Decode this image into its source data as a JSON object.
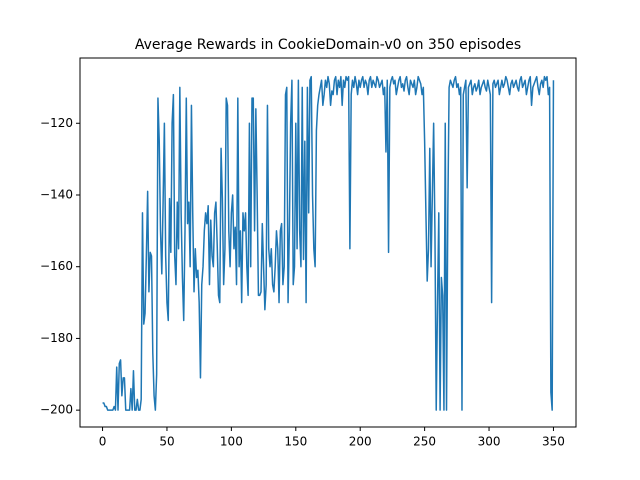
{
  "chart_data": {
    "type": "line",
    "title": "Average Rewards in CookieDomain-v0 on 350 episodes",
    "xlim": [
      -17.5,
      367.5
    ],
    "ylim": [
      -204.7,
      -101.8
    ],
    "xticks": [
      0,
      50,
      100,
      150,
      200,
      250,
      300,
      350
    ],
    "yticks": [
      {
        "value": -200,
        "label": "−200"
      },
      {
        "value": -180,
        "label": "−180"
      },
      {
        "value": -160,
        "label": "−160"
      },
      {
        "value": -140,
        "label": "−140"
      },
      {
        "value": -120,
        "label": "−120"
      }
    ],
    "series": [
      {
        "color": "#1f77b4",
        "x": [
          0,
          1,
          2,
          3,
          4,
          5,
          6,
          7,
          8,
          9,
          10,
          11,
          12,
          13,
          14,
          15,
          16,
          17,
          18,
          19,
          20,
          21,
          22,
          23,
          24,
          25,
          26,
          27,
          28,
          29,
          30,
          31,
          32,
          33,
          34,
          35,
          36,
          37,
          38,
          39,
          40,
          41,
          42,
          43,
          44,
          45,
          46,
          47,
          48,
          49,
          50,
          51,
          52,
          53,
          54,
          55,
          56,
          57,
          58,
          59,
          60,
          61,
          62,
          63,
          64,
          65,
          66,
          67,
          68,
          69,
          70,
          71,
          72,
          73,
          74,
          75,
          76,
          77,
          78,
          79,
          80,
          81,
          82,
          83,
          84,
          85,
          86,
          87,
          88,
          89,
          90,
          91,
          92,
          93,
          94,
          95,
          96,
          97,
          98,
          99,
          100,
          101,
          102,
          103,
          104,
          105,
          106,
          107,
          108,
          109,
          110,
          111,
          112,
          113,
          114,
          115,
          116,
          117,
          118,
          119,
          120,
          121,
          122,
          123,
          124,
          125,
          126,
          127,
          128,
          129,
          130,
          131,
          132,
          133,
          134,
          135,
          136,
          137,
          138,
          139,
          140,
          141,
          142,
          143,
          144,
          145,
          146,
          147,
          148,
          149,
          150,
          151,
          152,
          153,
          154,
          155,
          156,
          157,
          158,
          159,
          160,
          161,
          162,
          163,
          164,
          165,
          166,
          167,
          168,
          169,
          170,
          171,
          172,
          173,
          174,
          175,
          176,
          177,
          178,
          179,
          180,
          181,
          182,
          183,
          184,
          185,
          186,
          187,
          188,
          189,
          190,
          191,
          192,
          193,
          194,
          195,
          196,
          197,
          198,
          199,
          200,
          201,
          202,
          203,
          204,
          205,
          206,
          207,
          208,
          209,
          210,
          211,
          212,
          213,
          214,
          215,
          216,
          217,
          218,
          219,
          220,
          221,
          222,
          223,
          224,
          225,
          226,
          227,
          228,
          229,
          230,
          231,
          232,
          233,
          234,
          235,
          236,
          237,
          238,
          239,
          240,
          241,
          242,
          243,
          244,
          245,
          246,
          247,
          248,
          249,
          250,
          251,
          252,
          253,
          254,
          255,
          256,
          257,
          258,
          259,
          260,
          261,
          262,
          263,
          264,
          265,
          266,
          267,
          268,
          269,
          270,
          271,
          272,
          273,
          274,
          275,
          276,
          277,
          278,
          279,
          280,
          281,
          282,
          283,
          284,
          285,
          286,
          287,
          288,
          289,
          290,
          291,
          292,
          293,
          294,
          295,
          296,
          297,
          298,
          299,
          300,
          301,
          302,
          303,
          304,
          305,
          306,
          307,
          308,
          309,
          310,
          311,
          312,
          313,
          314,
          315,
          316,
          317,
          318,
          319,
          320,
          321,
          322,
          323,
          324,
          325,
          326,
          327,
          328,
          329,
          330,
          331,
          332,
          333,
          334,
          335,
          336,
          337,
          338,
          339,
          340,
          341,
          342,
          343,
          344,
          345,
          346,
          347,
          348,
          349,
          350
        ],
        "values": [
          -198,
          -198,
          -199,
          -199,
          -200,
          -200,
          -200,
          -200,
          -200,
          -199,
          -200,
          -188,
          -200,
          -187,
          -186,
          -196,
          -191,
          -191,
          -200,
          -200,
          -200,
          -200,
          -194,
          -200,
          -189,
          -200,
          -200,
          -197,
          -200,
          -200,
          -197,
          -145,
          -176,
          -173,
          -157,
          -139,
          -167,
          -156,
          -157,
          -184,
          -196,
          -200,
          -190,
          -113,
          -125,
          -150,
          -162,
          -142,
          -120,
          -157,
          -170,
          -175,
          -141,
          -156,
          -120,
          -112,
          -157,
          -165,
          -142,
          -155,
          -110,
          -145,
          -163,
          -175,
          -150,
          -113,
          -148,
          -142,
          -160,
          -115,
          -145,
          -167,
          -155,
          -163,
          -161,
          -170,
          -191,
          -165,
          -160,
          -150,
          -145,
          -148,
          -143,
          -165,
          -147,
          -157,
          -160,
          -145,
          -142,
          -154,
          -168,
          -170,
          -127,
          -141,
          -165,
          -155,
          -113,
          -115,
          -150,
          -160,
          -145,
          -140,
          -155,
          -149,
          -165,
          -113,
          -160,
          -150,
          -170,
          -145,
          -150,
          -145,
          -160,
          -168,
          -120,
          -160,
          -113,
          -113,
          -150,
          -116,
          -140,
          -168,
          -168,
          -167,
          -148,
          -160,
          -172,
          -165,
          -115,
          -155,
          -160,
          -155,
          -165,
          -167,
          -160,
          -150,
          -155,
          -170,
          -150,
          -148,
          -165,
          -160,
          -112,
          -110,
          -170,
          -150,
          -120,
          -108,
          -165,
          -160,
          -120,
          -155,
          -108,
          -150,
          -160,
          -110,
          -158,
          -125,
          -170,
          -110,
          -145,
          -108,
          -107,
          -140,
          -155,
          -160,
          -122,
          -115,
          -112,
          -110,
          -108,
          -115,
          -112,
          -108,
          -110,
          -107,
          -109,
          -115,
          -111,
          -112,
          -108,
          -107,
          -112,
          -108,
          -110,
          -107,
          -115,
          -108,
          -110,
          -107,
          -108,
          -107,
          -155,
          -112,
          -108,
          -110,
          -107,
          -109,
          -112,
          -108,
          -110,
          -108,
          -107,
          -110,
          -108,
          -109,
          -112,
          -108,
          -107,
          -110,
          -108,
          -109,
          -110,
          -107,
          -108,
          -110,
          -109,
          -108,
          -112,
          -110,
          -128,
          -108,
          -156,
          -110,
          -108,
          -107,
          -109,
          -108,
          -112,
          -110,
          -108,
          -107,
          -110,
          -109,
          -111,
          -108,
          -107,
          -110,
          -112,
          -108,
          -109,
          -110,
          -108,
          -112,
          -110,
          -107,
          -108,
          -109,
          -112,
          -110,
          -125,
          -145,
          -164,
          -155,
          -127,
          -160,
          -140,
          -120,
          -150,
          -200,
          -170,
          -145,
          -200,
          -163,
          -168,
          -200,
          -120,
          -200,
          -145,
          -110,
          -108,
          -109,
          -110,
          -108,
          -107,
          -110,
          -109,
          -112,
          -110,
          -200,
          -112,
          -110,
          -108,
          -138,
          -110,
          -109,
          -108,
          -112,
          -110,
          -109,
          -111,
          -110,
          -108,
          -112,
          -110,
          -109,
          -108,
          -110,
          -111,
          -108,
          -110,
          -112,
          -170,
          -109,
          -108,
          -110,
          -109,
          -108,
          -112,
          -110,
          -108,
          -110,
          -109,
          -107,
          -108,
          -110,
          -112,
          -109,
          -108,
          -110,
          -109,
          -108,
          -110,
          -111,
          -108,
          -107,
          -110,
          -109,
          -108,
          -112,
          -110,
          -108,
          -107,
          -115,
          -110,
          -109,
          -108,
          -107,
          -110,
          -112,
          -109,
          -108,
          -110,
          -107,
          -108,
          -107,
          -112,
          -110,
          -195,
          -200,
          -108
        ]
      }
    ]
  }
}
